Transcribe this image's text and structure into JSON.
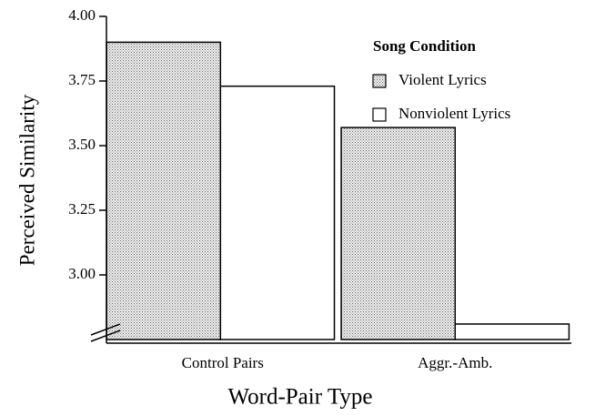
{
  "chart_data": {
    "type": "bar",
    "x_label": "Word-Pair Type",
    "y_label": "Perceived Similarity",
    "categories": [
      "Control Pairs",
      "Aggr.-Amb."
    ],
    "series": [
      {
        "name": "Violent Lyrics",
        "color": "#666666",
        "values": [
          3.9,
          3.57
        ]
      },
      {
        "name": "Nonviolent Lyrics",
        "color": "#ffffff",
        "values": [
          3.73,
          2.81
        ]
      }
    ],
    "legend_title": "Song Condition",
    "legend": "upper right",
    "ylim": [
      2.75,
      4.0
    ],
    "yticks": [
      {
        "value": 3,
        "label": "3.00"
      },
      {
        "value": 3.25,
        "label": "3.25"
      },
      {
        "value": 3.5,
        "label": "3.50"
      },
      {
        "value": 3.75,
        "label": "3.75"
      },
      {
        "value": 4,
        "label": "4.00"
      }
    ]
  }
}
